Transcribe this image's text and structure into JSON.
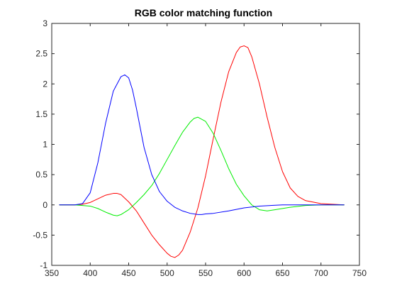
{
  "chart_data": {
    "type": "line",
    "title": "RGB color matching function",
    "xlabel": "",
    "ylabel": "",
    "xlim": [
      350,
      750
    ],
    "ylim": [
      -1,
      3
    ],
    "xticks": [
      350,
      400,
      450,
      500,
      550,
      600,
      650,
      700,
      750
    ],
    "yticks": [
      -1,
      -0.5,
      0,
      0.5,
      1,
      1.5,
      2,
      2.5,
      3
    ],
    "xtick_labels": [
      "350",
      "400",
      "450",
      "500",
      "550",
      "600",
      "650",
      "700",
      "750"
    ],
    "ytick_labels": [
      "-1",
      "-0.5",
      "0",
      "0.5",
      "1",
      "1.5",
      "2",
      "2.5",
      "3"
    ],
    "grid": false,
    "series": [
      {
        "color": "#ff0000",
        "x": [
          360,
          380,
          390,
          400,
          410,
          420,
          430,
          435,
          440,
          450,
          460,
          470,
          480,
          490,
          500,
          505,
          510,
          515,
          520,
          530,
          540,
          550,
          560,
          570,
          580,
          590,
          595,
          600,
          605,
          610,
          620,
          630,
          640,
          650,
          660,
          670,
          680,
          700,
          730
        ],
        "y": [
          0,
          0,
          0.01,
          0.04,
          0.1,
          0.16,
          0.19,
          0.19,
          0.17,
          0.05,
          -0.1,
          -0.3,
          -0.5,
          -0.66,
          -0.8,
          -0.85,
          -0.87,
          -0.83,
          -0.75,
          -0.45,
          -0.05,
          0.48,
          1.1,
          1.7,
          2.2,
          2.52,
          2.61,
          2.63,
          2.6,
          2.45,
          2.0,
          1.45,
          0.95,
          0.55,
          0.28,
          0.14,
          0.07,
          0.02,
          0
        ]
      },
      {
        "color": "#00ee00",
        "x": [
          360,
          380,
          400,
          410,
          420,
          430,
          435,
          440,
          450,
          460,
          470,
          480,
          490,
          500,
          510,
          520,
          530,
          535,
          540,
          550,
          560,
          570,
          580,
          590,
          600,
          610,
          620,
          630,
          640,
          660,
          680,
          700,
          730
        ],
        "y": [
          0,
          0,
          -0.02,
          -0.06,
          -0.12,
          -0.17,
          -0.18,
          -0.16,
          -0.08,
          0.04,
          0.17,
          0.32,
          0.52,
          0.75,
          0.98,
          1.2,
          1.37,
          1.43,
          1.45,
          1.38,
          1.18,
          0.9,
          0.6,
          0.34,
          0.15,
          0.0,
          -0.08,
          -0.1,
          -0.08,
          -0.04,
          -0.01,
          0,
          0
        ]
      },
      {
        "color": "#0000ff",
        "x": [
          360,
          380,
          390,
          400,
          410,
          420,
          430,
          440,
          445,
          450,
          455,
          460,
          470,
          480,
          490,
          500,
          510,
          520,
          530,
          540,
          545,
          550,
          560,
          580,
          600,
          620,
          650,
          700,
          730
        ],
        "y": [
          0,
          0,
          0.02,
          0.2,
          0.7,
          1.35,
          1.88,
          2.12,
          2.15,
          2.1,
          1.9,
          1.6,
          0.95,
          0.5,
          0.22,
          0.06,
          -0.04,
          -0.1,
          -0.14,
          -0.16,
          -0.16,
          -0.15,
          -0.14,
          -0.1,
          -0.05,
          -0.02,
          0,
          0,
          0
        ]
      }
    ]
  }
}
